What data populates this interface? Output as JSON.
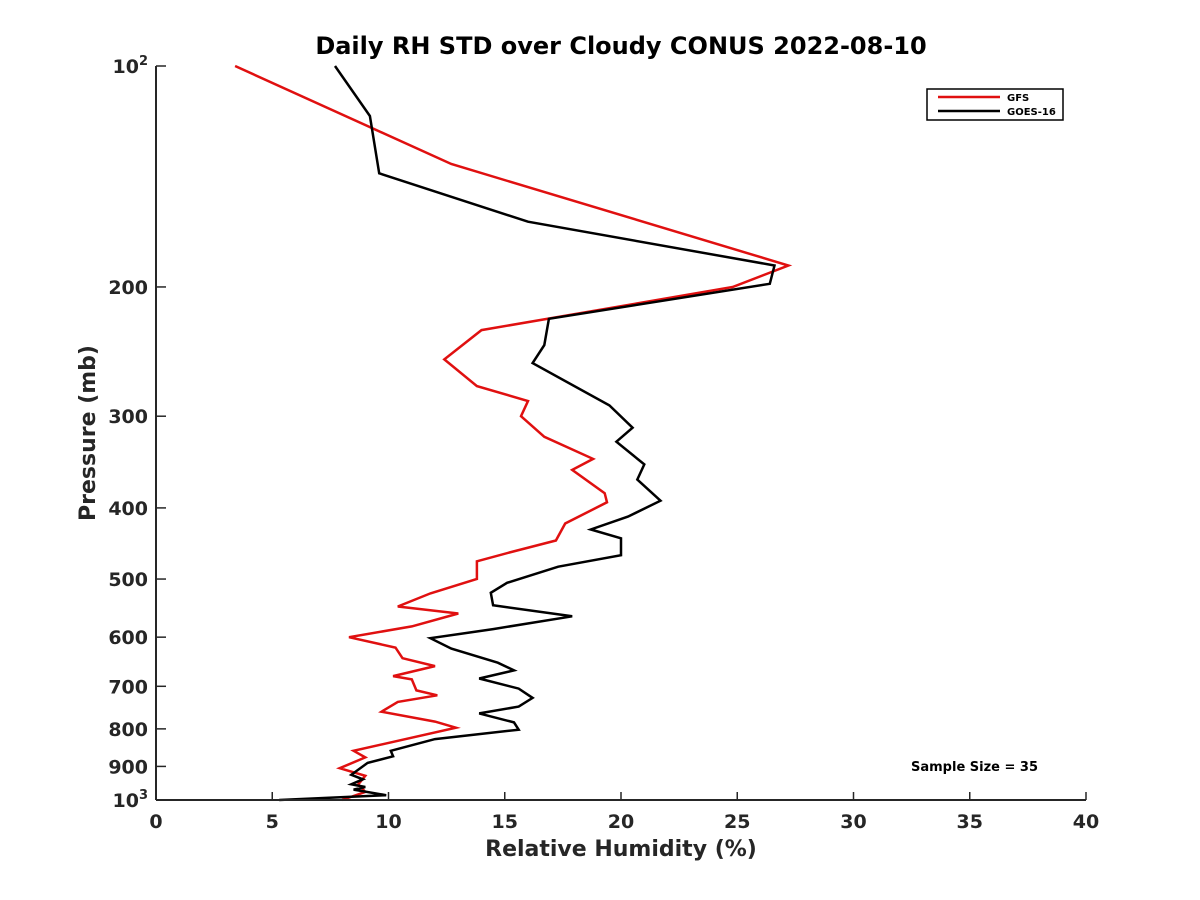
{
  "chart_data": {
    "type": "line",
    "title": "Daily RH STD over Cloudy CONUS 2022-08-10",
    "xlabel": "Relative Humidity (%)",
    "ylabel": "Pressure (mb)",
    "xlim": [
      0,
      40
    ],
    "ylim": [
      100,
      1000
    ],
    "y_scale": "log",
    "y_reversed": true,
    "grid": false,
    "legend_position": "top-right",
    "x_ticks": [
      "0",
      "5",
      "10",
      "15",
      "20",
      "25",
      "30",
      "35",
      "40"
    ],
    "x_tick_values": [
      0,
      5,
      10,
      15,
      20,
      25,
      30,
      35,
      40
    ],
    "y_ticks": [
      {
        "value": 100,
        "base": "10",
        "exp": "2"
      },
      {
        "value": 200,
        "label": "200"
      },
      {
        "value": 300,
        "label": "300"
      },
      {
        "value": 400,
        "label": "400"
      },
      {
        "value": 500,
        "label": "500"
      },
      {
        "value": 600,
        "label": "600"
      },
      {
        "value": 700,
        "label": "700"
      },
      {
        "value": 800,
        "label": "800"
      },
      {
        "value": 900,
        "label": "900"
      },
      {
        "value": 1000,
        "base": "10",
        "exp": "3"
      }
    ],
    "annotation": "Sample Size = 35",
    "series": [
      {
        "name": "GFS",
        "color": "#e01010",
        "points": [
          [
            3.4,
            100
          ],
          [
            12.7,
            136
          ],
          [
            27.2,
            187
          ],
          [
            24.8,
            200
          ],
          [
            14.0,
            229
          ],
          [
            12.4,
            251
          ],
          [
            13.8,
            273
          ],
          [
            16.0,
            286
          ],
          [
            15.7,
            300
          ],
          [
            16.7,
            320
          ],
          [
            18.8,
            343
          ],
          [
            17.9,
            355
          ],
          [
            19.3,
            382
          ],
          [
            19.4,
            393
          ],
          [
            17.6,
            420
          ],
          [
            17.2,
            443
          ],
          [
            15.2,
            460
          ],
          [
            13.8,
            473
          ],
          [
            13.8,
            500
          ],
          [
            11.8,
            523
          ],
          [
            10.4,
            545
          ],
          [
            13.0,
            557
          ],
          [
            11.0,
            580
          ],
          [
            8.3,
            600
          ],
          [
            10.3,
            620
          ],
          [
            10.6,
            641
          ],
          [
            12.0,
            657
          ],
          [
            10.2,
            678
          ],
          [
            11.0,
            685
          ],
          [
            11.2,
            709
          ],
          [
            12.1,
            720
          ],
          [
            10.4,
            735
          ],
          [
            9.7,
            758
          ],
          [
            12.0,
            782
          ],
          [
            12.9,
            797
          ],
          [
            8.5,
            857
          ],
          [
            9.0,
            875
          ],
          [
            7.9,
            905
          ],
          [
            9.0,
            927
          ],
          [
            8.7,
            952
          ],
          [
            9.0,
            975
          ],
          [
            8.0,
            1000
          ]
        ]
      },
      {
        "name": "GOES-16",
        "color": "#000000",
        "points": [
          [
            7.7,
            100
          ],
          [
            9.2,
            117
          ],
          [
            9.6,
            140
          ],
          [
            16.0,
            163
          ],
          [
            26.6,
            187
          ],
          [
            26.4,
            198
          ],
          [
            16.9,
            221
          ],
          [
            16.7,
            240
          ],
          [
            16.2,
            254
          ],
          [
            19.5,
            290
          ],
          [
            20.5,
            311
          ],
          [
            19.8,
            325
          ],
          [
            21.0,
            349
          ],
          [
            20.7,
            366
          ],
          [
            21.7,
            391
          ],
          [
            20.3,
            411
          ],
          [
            18.7,
            428
          ],
          [
            20.0,
            440
          ],
          [
            20.0,
            464
          ],
          [
            17.3,
            481
          ],
          [
            15.1,
            506
          ],
          [
            14.4,
            522
          ],
          [
            14.5,
            543
          ],
          [
            17.9,
            562
          ],
          [
            14.5,
            585
          ],
          [
            11.8,
            602
          ],
          [
            12.7,
            622
          ],
          [
            14.7,
            650
          ],
          [
            15.4,
            666
          ],
          [
            13.9,
            683
          ],
          [
            15.6,
            705
          ],
          [
            16.2,
            726
          ],
          [
            15.6,
            746
          ],
          [
            13.9,
            762
          ],
          [
            15.4,
            784
          ],
          [
            15.6,
            802
          ],
          [
            12.0,
            826
          ],
          [
            10.1,
            857
          ],
          [
            10.2,
            872
          ],
          [
            9.1,
            890
          ],
          [
            8.4,
            924
          ],
          [
            8.9,
            937
          ],
          [
            8.4,
            952
          ],
          [
            9.0,
            960
          ],
          [
            8.5,
            968
          ],
          [
            9.9,
            985
          ],
          [
            5.3,
            1000
          ]
        ]
      }
    ]
  }
}
